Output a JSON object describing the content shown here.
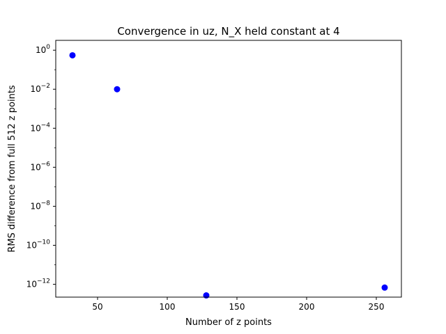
{
  "chart_data": {
    "type": "scatter",
    "title": "Convergence in uz, N_X held constant at 4",
    "xlabel": "Number of z points",
    "ylabel": "RMS difference from full 512 z points",
    "xscale": "linear",
    "yscale": "log",
    "xlim": [
      20,
      268
    ],
    "ylim": [
      2.2e-13,
      3.2
    ],
    "grid": false,
    "x_ticks": [
      50,
      100,
      150,
      200,
      250
    ],
    "y_ticks": [
      {
        "base": "10",
        "exp": "0",
        "value": 1
      },
      {
        "base": "10",
        "exp": "−2",
        "value": 0.01
      },
      {
        "base": "10",
        "exp": "−4",
        "value": 0.0001
      },
      {
        "base": "10",
        "exp": "−6",
        "value": 1e-06
      },
      {
        "base": "10",
        "exp": "−8",
        "value": 1e-08
      },
      {
        "base": "10",
        "exp": "−10",
        "value": 1e-10
      },
      {
        "base": "10",
        "exp": "−12",
        "value": 1e-12
      }
    ],
    "series": [
      {
        "color": "#0000ff",
        "marker": "circle",
        "x": [
          32,
          64,
          128,
          256
        ],
        "y": [
          0.55,
          0.01,
          2.7e-13,
          6.8e-13
        ]
      }
    ]
  }
}
